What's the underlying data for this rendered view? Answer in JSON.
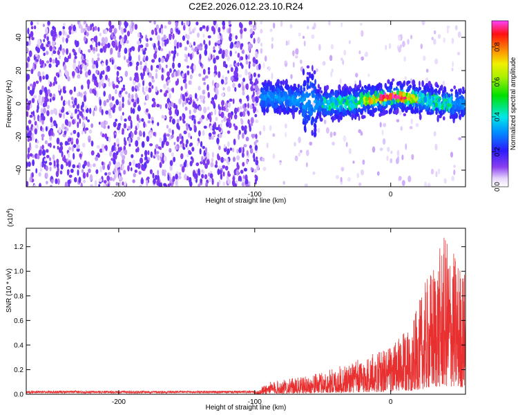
{
  "title": "C2E2.2026.012.23.10.R24",
  "colors": {
    "snr_line": "#e83030",
    "dots_dense": "#6a1fe0",
    "dots_light": "#cdb6f4"
  },
  "chart_data": [
    {
      "type": "heatmap",
      "xlabel": "Height of straight line (km)",
      "ylabel": "Frequency (Hz)",
      "xlim": [
        -268,
        55
      ],
      "ylim": [
        -50,
        50
      ],
      "xticks": [
        -200,
        -100,
        0
      ],
      "yticks": [
        -40,
        -20,
        0,
        20,
        40
      ],
      "colorbar": {
        "label": "Normalized spectral amplitude",
        "range": [
          0.0,
          0.95
        ],
        "ticks": [
          0.0,
          0.2,
          0.4,
          0.6,
          0.8
        ],
        "colormap": "rainbow (white-violet-blue-cyan-green-yellow-red-magenta)"
      },
      "regions": [
        {
          "x_range": [
            -268,
            -95
          ],
          "freq_range": [
            -50,
            50
          ],
          "amplitude": 0.05
        },
        {
          "x_range": [
            -95,
            55
          ],
          "freq_range": [
            -10,
            10
          ],
          "amplitude": 0.2
        },
        {
          "x_range": [
            -30,
            20
          ],
          "freq_range": [
            -3,
            4
          ],
          "amplitude": 0.6
        },
        {
          "x_range": [
            -10,
            10
          ],
          "freq_range": [
            -1,
            2
          ],
          "amplitude": 0.9
        }
      ]
    },
    {
      "type": "line",
      "xlabel": "Height of straight line (km)",
      "ylabel": "SNR (10 * v/v)",
      "y_multiplier": "(x10",
      "y_multiplier_exp": "4",
      "xlim": [
        -268,
        55
      ],
      "ylim": [
        0,
        1.35
      ],
      "xticks": [
        -200,
        -100,
        0
      ],
      "yticks": [
        0.0,
        0.2,
        0.4,
        0.6,
        0.8,
        1.0,
        1.2
      ],
      "series": [
        {
          "envelope": [
            {
              "x": -268,
              "y": 0.02
            },
            {
              "x": -100,
              "y": 0.02
            },
            {
              "x": -90,
              "y": 0.1
            },
            {
              "x": -60,
              "y": 0.15
            },
            {
              "x": -40,
              "y": 0.22
            },
            {
              "x": -20,
              "y": 0.3
            },
            {
              "x": 0,
              "y": 0.4
            },
            {
              "x": 15,
              "y": 0.55
            },
            {
              "x": 25,
              "y": 0.9
            },
            {
              "x": 40,
              "y": 1.3
            },
            {
              "x": 55,
              "y": 1.0
            }
          ]
        }
      ]
    }
  ]
}
